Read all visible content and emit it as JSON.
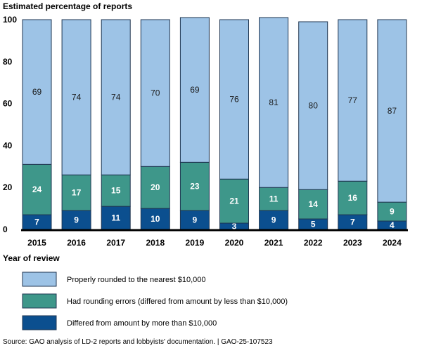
{
  "chart_data": {
    "type": "bar",
    "stacked": true,
    "title": "Estimated percentage of reports",
    "xlabel": "Year of review",
    "ylabel": "Estimated percentage of reports",
    "ylim": [
      0,
      100
    ],
    "yticks": [
      "0",
      "20",
      "40",
      "60",
      "80",
      "100"
    ],
    "categories": [
      "2015",
      "2016",
      "2017",
      "2018",
      "2019",
      "2020",
      "2021",
      "2022",
      "2023",
      "2024"
    ],
    "series": [
      {
        "name": "Differed from amount by more than $10,000",
        "color": "#0B4F8F",
        "label_color": "#ffffff",
        "values": [
          7,
          9,
          11,
          10,
          9,
          3,
          9,
          5,
          7,
          4
        ]
      },
      {
        "name": "Had rounding errors (differed from amount by less than $10,000)",
        "color": "#3E978A",
        "label_color": "#ffffff",
        "values": [
          24,
          17,
          15,
          20,
          23,
          21,
          11,
          14,
          16,
          9
        ]
      },
      {
        "name": "Properly rounded to the nearest $10,000",
        "color": "#9DC3E6",
        "label_color": "#1a1a1a",
        "values": [
          69,
          74,
          74,
          70,
          69,
          76,
          81,
          80,
          77,
          87
        ]
      }
    ],
    "legend_placement": "bottom",
    "source": "Source: GAO analysis of LD-2 reports and lobbyists' documentation.  |  GAO-25-107523"
  }
}
